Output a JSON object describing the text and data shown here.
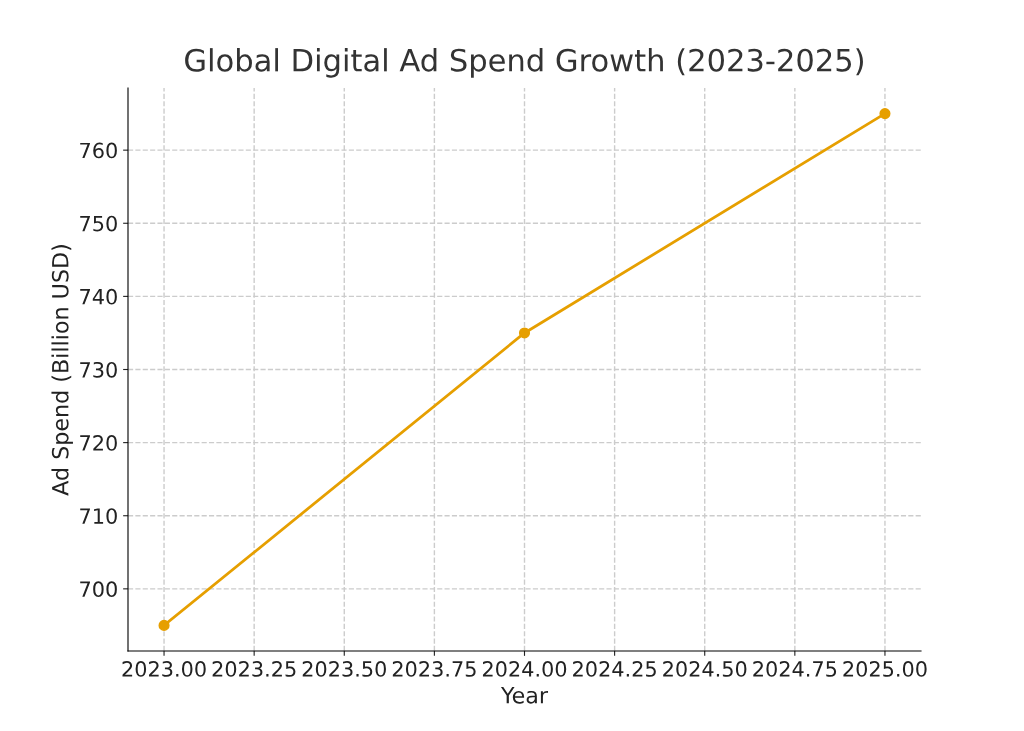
{
  "chart_data": {
    "type": "line",
    "title": "Global Digital Ad Spend Growth (2023-2025)",
    "xlabel": "Year",
    "ylabel": "Ad Spend (Billion USD)",
    "x": [
      2023,
      2024,
      2025
    ],
    "series": [
      {
        "color": "#e69f00",
        "values": [
          695,
          735,
          765
        ]
      }
    ],
    "xlim": [
      2022.9,
      2025.1
    ],
    "ylim": [
      691.5,
      768.5
    ],
    "xticks": [
      {
        "value": 2023,
        "label": "2023.00"
      },
      {
        "value": 2023.25,
        "label": "2023.25"
      },
      {
        "value": 2023.5,
        "label": "2023.50"
      },
      {
        "value": 2023.75,
        "label": "2023.75"
      },
      {
        "value": 2024,
        "label": "2024.00"
      },
      {
        "value": 2024.25,
        "label": "2024.25"
      },
      {
        "value": 2024.5,
        "label": "2024.50"
      },
      {
        "value": 2024.75,
        "label": "2024.75"
      },
      {
        "value": 2025,
        "label": "2025.00"
      }
    ],
    "yticks": [
      700,
      710,
      720,
      730,
      740,
      750,
      760
    ],
    "grid": true,
    "marker": "circle",
    "line_style": "solid"
  }
}
